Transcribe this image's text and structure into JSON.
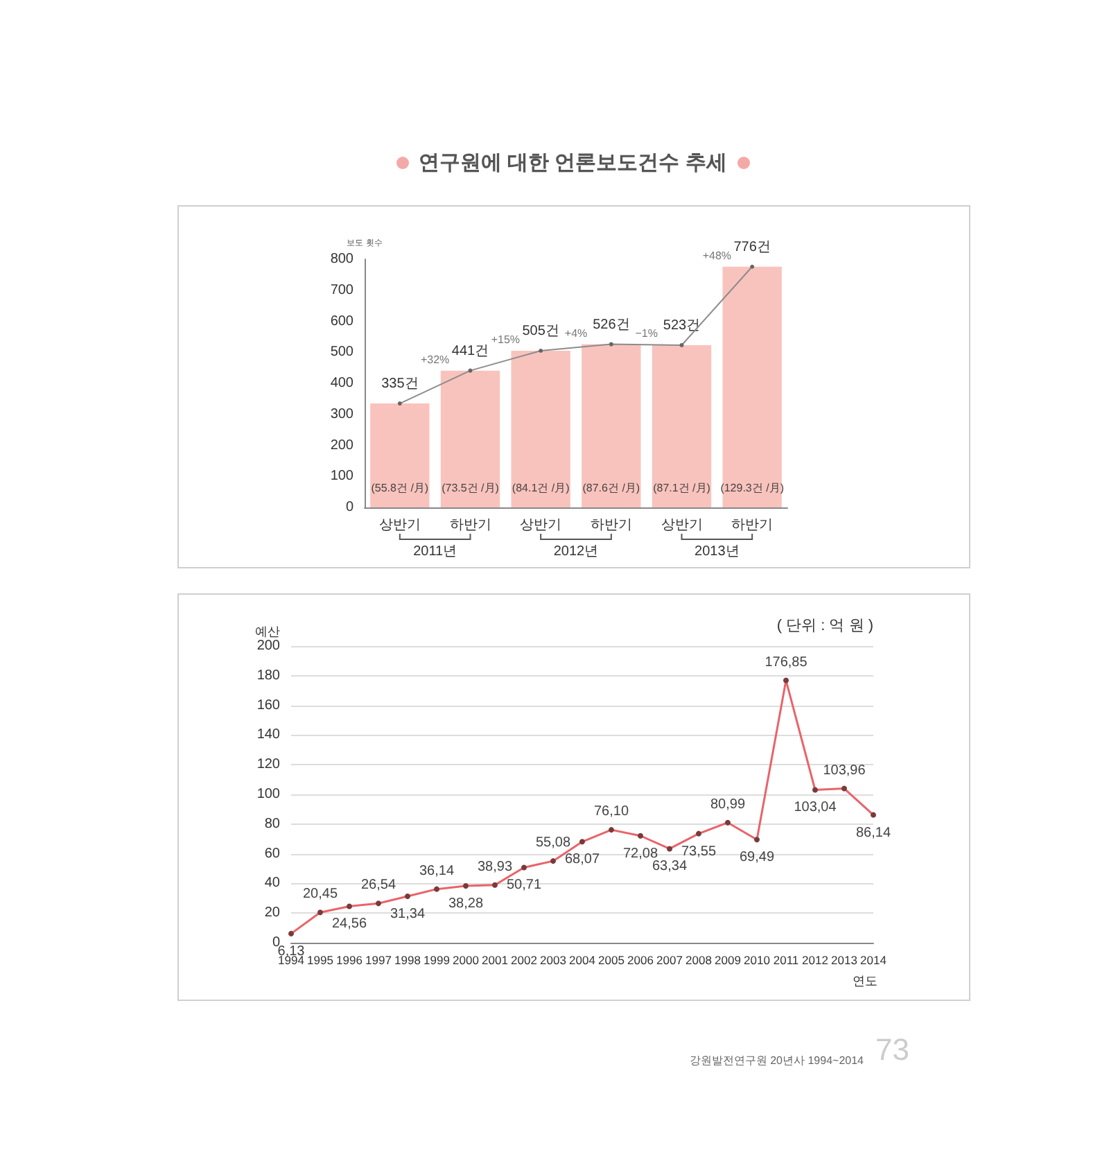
{
  "chart_data": [
    {
      "type": "bar",
      "title": "연구원에 대한 언론보도건수 추세",
      "ylabel": "보도 횟수",
      "categories": [
        "상반기",
        "하반기",
        "상반기",
        "하반기",
        "상반기",
        "하반기"
      ],
      "series": [
        {
          "type": "bar",
          "color": "#f9c3bd",
          "values": [
            335,
            441,
            505,
            526,
            523,
            776
          ],
          "value_labels": [
            "335건",
            "441건",
            "505건",
            "526건",
            "523건",
            "776건"
          ]
        },
        {
          "type": "line",
          "color": "#8c8c8c",
          "values": [
            335,
            441,
            505,
            526,
            523,
            776
          ]
        }
      ],
      "ylim": [
        0,
        800
      ],
      "yticks": [
        0,
        100,
        200,
        300,
        400,
        500,
        600,
        700,
        800
      ],
      "marker": "circle",
      "annotations": [
        "(55.8건 /月)",
        "(73.5건 /月)",
        "(84.1건 /月)",
        "(87.6건 /月)",
        "(87.1건 /月)",
        "(129.3건 /月)",
        "+32%",
        "+15%",
        "+4%",
        "−1%",
        "+48%",
        "2011년",
        "2012년",
        "2013년"
      ]
    },
    {
      "type": "line",
      "ylabel": "예산",
      "xlabel": "연도",
      "categories": [
        "1994",
        "1995",
        "1996",
        "1997",
        "1998",
        "1999",
        "2000",
        "2001",
        "2002",
        "2003",
        "2004",
        "2005",
        "2006",
        "2007",
        "2008",
        "2009",
        "2010",
        "2011",
        "2012",
        "2013",
        "2014"
      ],
      "series": [
        {
          "color": "#e8646a",
          "values": [
            6.13,
            20.45,
            24.56,
            26.54,
            31.34,
            36.14,
            38.28,
            38.93,
            50.71,
            55.08,
            68.07,
            76.1,
            72.08,
            63.34,
            73.55,
            80.99,
            69.49,
            176.85,
            103.04,
            103.96,
            86.14
          ],
          "value_labels": [
            "6,13",
            "20,45",
            "24,56",
            "26,54",
            "31,34",
            "36,14",
            "38,28",
            "38,93",
            "50,71",
            "55,08",
            "68,07",
            "76,10",
            "72,08",
            "63,34",
            "73,55",
            "80,99",
            "69,49",
            "176,85",
            "103,04",
            "103,96",
            "86,14"
          ]
        }
      ],
      "ylim": [
        0,
        200
      ],
      "yticks": [
        0,
        20,
        40,
        60,
        80,
        100,
        120,
        140,
        160,
        180,
        200
      ],
      "grid": "y",
      "marker": "circle",
      "line_style": "solid",
      "annotations": [
        "( 단위 : 억 원 )",
        "강원발전연구원 20년사 1994~2014",
        "73"
      ]
    }
  ]
}
